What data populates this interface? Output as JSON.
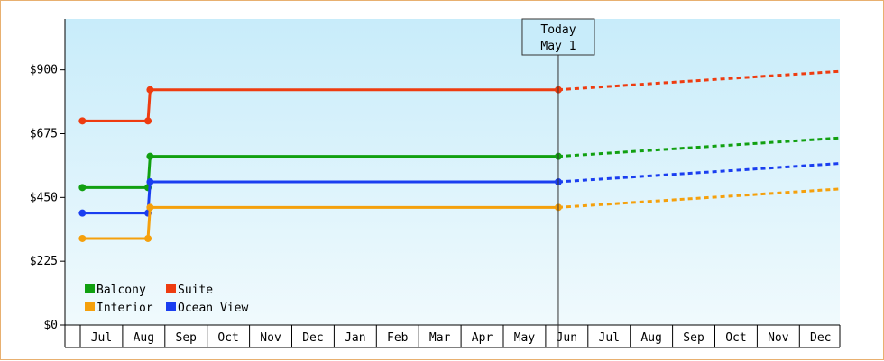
{
  "chart_data": {
    "type": "line",
    "y_axis": {
      "ticks": [
        "$0",
        "$225",
        "$450",
        "$675",
        "$900"
      ],
      "tick_values": [
        0,
        225,
        450,
        675,
        900
      ],
      "ylim": [
        0,
        1080
      ]
    },
    "x_axis": {
      "months": [
        "Jul",
        "Aug",
        "Sep",
        "Oct",
        "Nov",
        "Dec",
        "Jan",
        "Feb",
        "Mar",
        "Apr",
        "May",
        "Jun",
        "Jul",
        "Aug",
        "Sep",
        "Oct",
        "Nov",
        "Dec"
      ]
    },
    "today_marker": {
      "line1": "Today",
      "line2": "May 1",
      "x": 10.8
    },
    "series": [
      {
        "name": "Suite",
        "color": "#ee3c10",
        "points": [
          [
            -0.45,
            720
          ],
          [
            1.1,
            720
          ],
          [
            1.15,
            830
          ],
          [
            10.8,
            830
          ]
        ],
        "forecast": [
          [
            10.8,
            830
          ],
          [
            18.6,
            895
          ]
        ]
      },
      {
        "name": "Balcony",
        "color": "#11a011",
        "points": [
          [
            -0.45,
            485
          ],
          [
            1.1,
            485
          ],
          [
            1.15,
            595
          ],
          [
            10.8,
            595
          ]
        ],
        "forecast": [
          [
            10.8,
            595
          ],
          [
            18.6,
            660
          ]
        ]
      },
      {
        "name": "Ocean View",
        "color": "#1a3ef0",
        "points": [
          [
            -0.45,
            395
          ],
          [
            1.1,
            395
          ],
          [
            1.15,
            505
          ],
          [
            10.8,
            505
          ]
        ],
        "forecast": [
          [
            10.8,
            505
          ],
          [
            18.6,
            570
          ]
        ]
      },
      {
        "name": "Interior",
        "color": "#f5a00c",
        "points": [
          [
            -0.45,
            305
          ],
          [
            1.1,
            305
          ],
          [
            1.15,
            415
          ],
          [
            10.8,
            415
          ]
        ],
        "forecast": [
          [
            10.8,
            415
          ],
          [
            18.6,
            480
          ]
        ]
      }
    ],
    "legend": {
      "placement": "bottom-left",
      "rows": [
        [
          "Balcony",
          "Suite"
        ],
        [
          "Interior",
          "Ocean View"
        ]
      ]
    },
    "colors": {
      "gradient_top": "#c8ecfa",
      "gradient_bottom": "#f0fafd"
    }
  }
}
